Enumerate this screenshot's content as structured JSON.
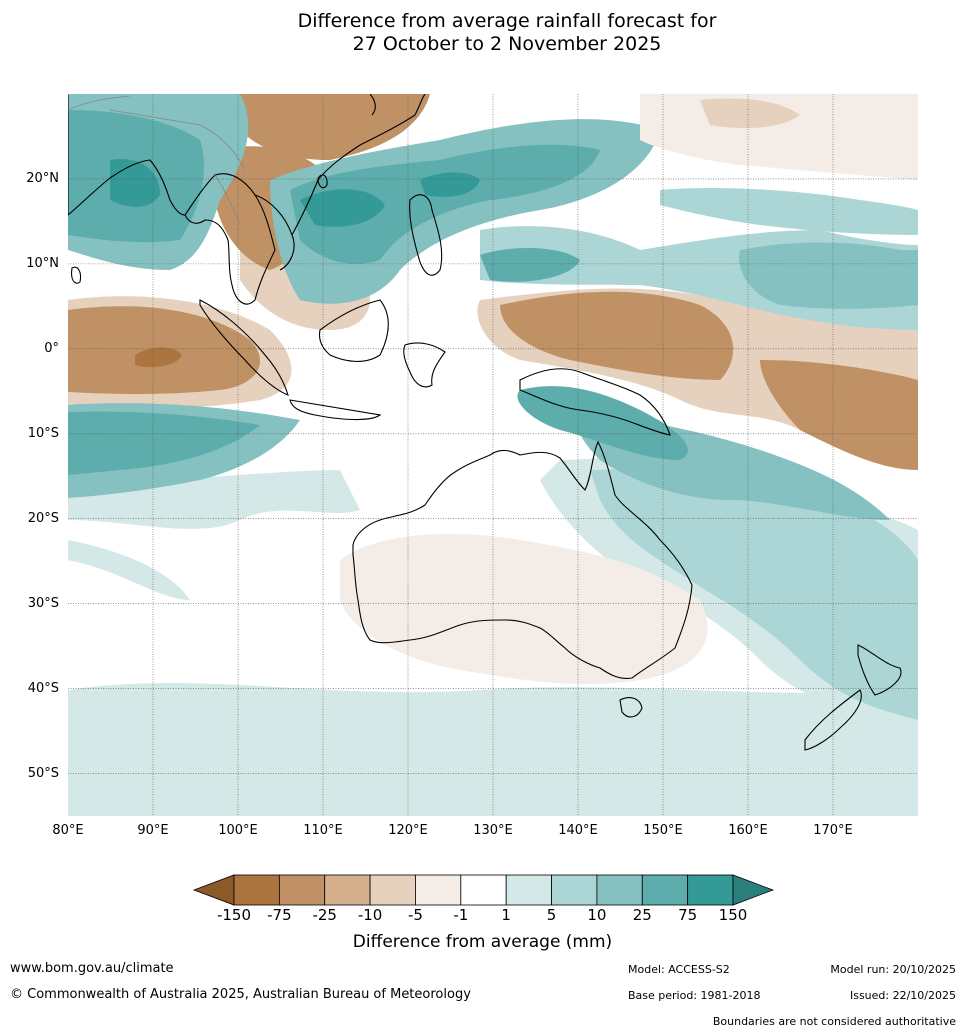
{
  "title": {
    "line1": "Difference from average rainfall forecast for",
    "line2": "27 October to 2 November 2025"
  },
  "map": {
    "lat_labels": [
      "20°N",
      "10°N",
      "0°",
      "10°S",
      "20°S",
      "30°S",
      "40°S",
      "50°S"
    ],
    "lon_labels": [
      "80°E",
      "90°E",
      "100°E",
      "110°E",
      "120°E",
      "130°E",
      "140°E",
      "150°E",
      "160°E",
      "170°E"
    ],
    "extent": {
      "lon_min": 80,
      "lon_max": 180,
      "lat_min": -55,
      "lat_max": 30
    }
  },
  "legend": {
    "title": "Difference from average (mm)",
    "ticks": [
      "-150",
      "-75",
      "-25",
      "-10",
      "-5",
      "-1",
      "1",
      "5",
      "10",
      "25",
      "75",
      "150"
    ],
    "colors": [
      "#8c5a28",
      "#ac743e",
      "#c09164",
      "#d4b08c",
      "#e5d1bd",
      "#f4ede7",
      "#ffffff",
      "#d4e9e7",
      "#acd6d5",
      "#84c1c0",
      "#5cadac",
      "#339a98",
      "#2a7f7d"
    ]
  },
  "footer": {
    "website": "www.bom.gov.au/climate",
    "copyright": "© Commonwealth of Australia 2025, Australian Bureau of Meteorology",
    "model": "Model: ACCESS-S2",
    "base_period": "Base period: 1981-2018",
    "model_run": "Model run: 20/10/2025",
    "issued": "Issued: 22/10/2025",
    "disclaimer": "Boundaries are not considered authoritative"
  }
}
